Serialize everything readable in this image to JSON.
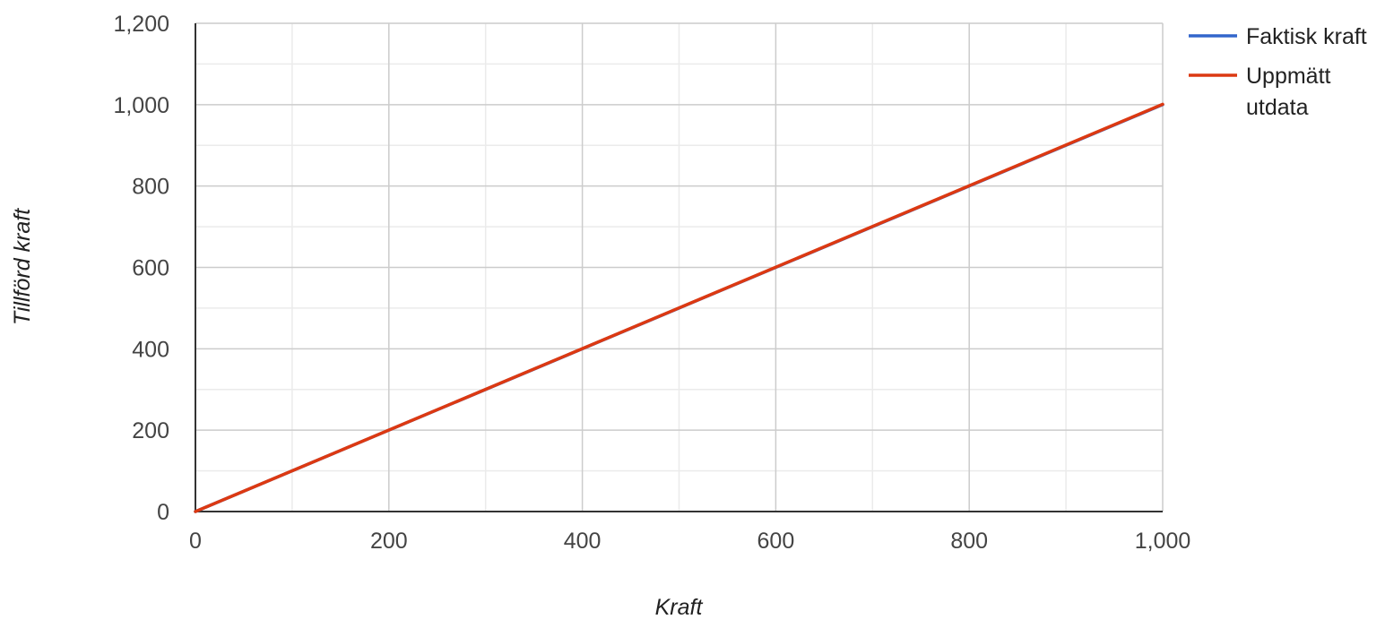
{
  "chart_data": {
    "type": "line",
    "title": "",
    "xlabel": "Kraft",
    "ylabel": "Tillförd kraft",
    "xlim": [
      0,
      1000
    ],
    "ylim": [
      0,
      1200
    ],
    "x_ticks": [
      "0",
      "200",
      "400",
      "600",
      "800",
      "1,000"
    ],
    "y_ticks": [
      "0",
      "200",
      "400",
      "600",
      "800",
      "1,000",
      "1,200"
    ],
    "grid": true,
    "legend": "right",
    "series": [
      {
        "name": "Faktisk kraft",
        "color": "#3366cc",
        "x": [
          0,
          1000
        ],
        "y": [
          0,
          1000
        ]
      },
      {
        "name": "Uppmätt utdata",
        "color": "#dc3912",
        "x": [
          0,
          1000
        ],
        "y": [
          0,
          1001
        ]
      }
    ]
  },
  "legend_items": [
    {
      "lines": [
        "Faktisk kraft"
      ]
    },
    {
      "lines": [
        "Uppmätt",
        "utdata"
      ]
    }
  ]
}
